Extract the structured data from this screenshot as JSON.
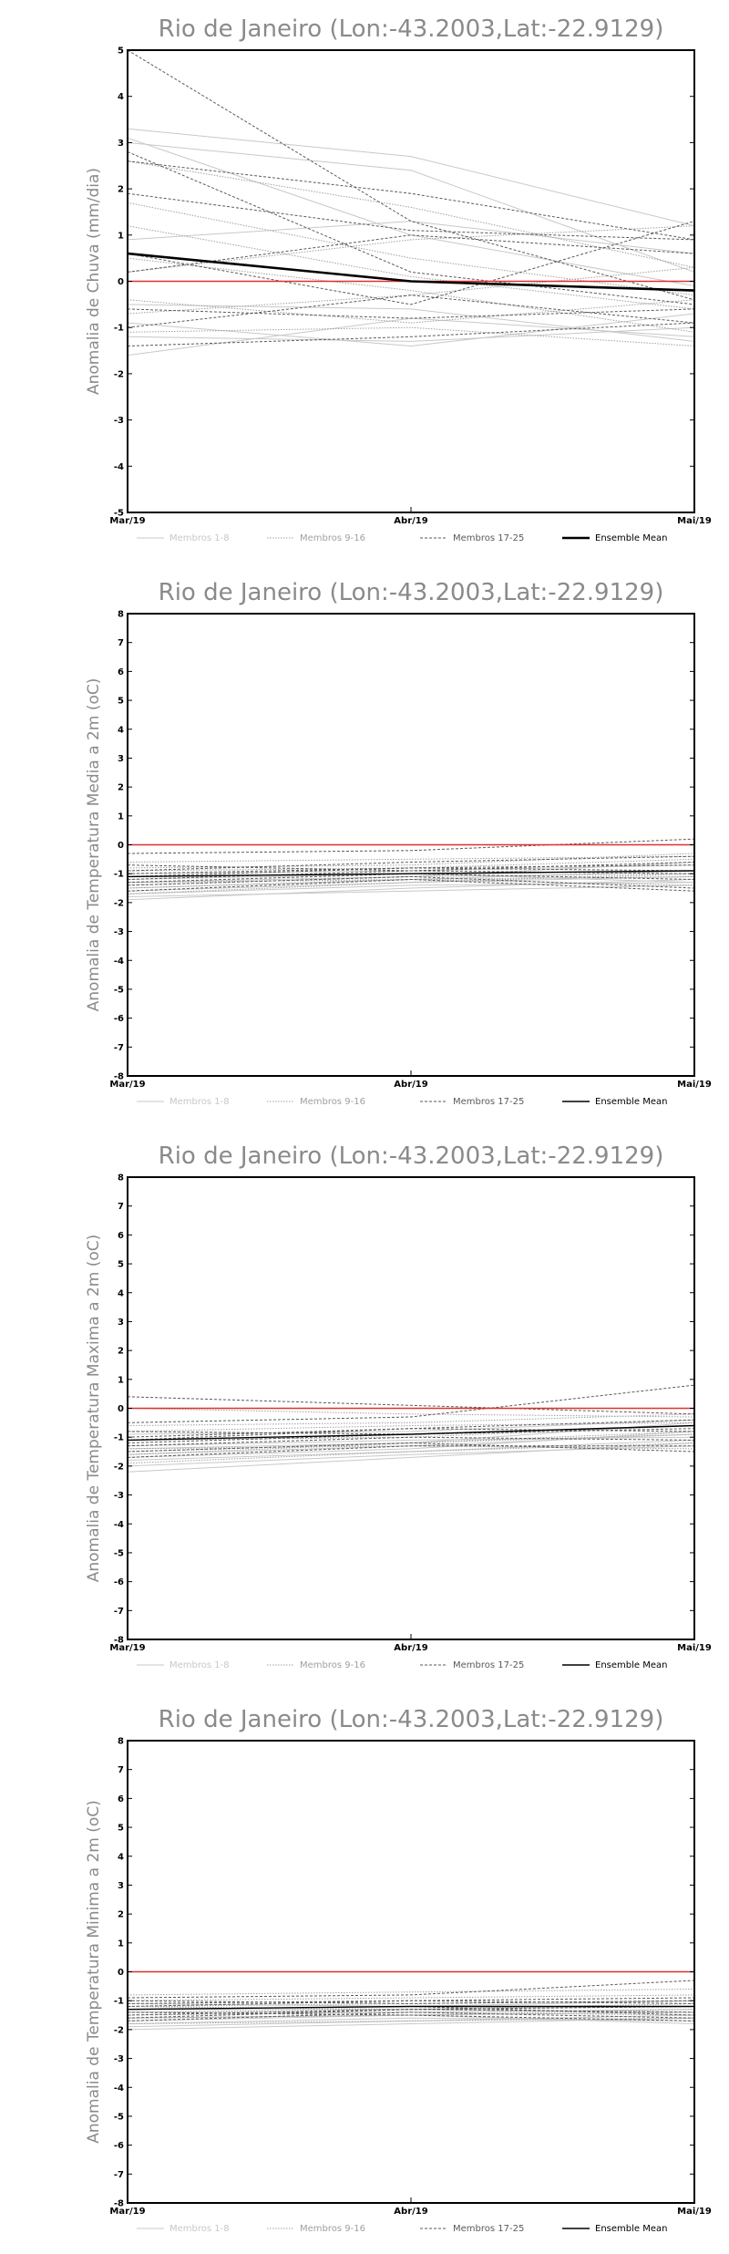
{
  "legend": {
    "m1": "Membros 1-8",
    "m2": "Membros 9-16",
    "m3": "Membros 17-25",
    "mean": "Ensemble Mean"
  },
  "colors": {
    "m1": "#c8c8c8",
    "m2": "#a0a0a0",
    "m3": "#5a5a5a",
    "mean": "#000000",
    "zero": "#e03030",
    "frame": "#000000"
  },
  "chart_data": [
    {
      "type": "line",
      "title": "Rio de Janeiro (Lon:-43.2003,Lat:-22.9129)",
      "ylabel": "Anomalia de Chuva (mm/dia)",
      "categories": [
        "Mar/19",
        "Abr/19",
        "Mai/19"
      ],
      "ylim": [
        -5,
        5
      ],
      "yticks": [
        -5,
        -4,
        -3,
        -2,
        -1,
        0,
        1,
        2,
        3,
        4,
        5
      ],
      "legend_placement": "bottom",
      "mean_bold": true,
      "members_1_8": [
        [
          3.3,
          2.7,
          1.2
        ],
        [
          3.1,
          1.0,
          -0.1
        ],
        [
          -1.2,
          -1.3,
          -1.0
        ],
        [
          -1.6,
          -0.8,
          -1.2
        ],
        [
          0.9,
          1.3,
          0.6
        ],
        [
          -0.5,
          -0.6,
          -1.3
        ],
        [
          -0.9,
          -1.4,
          -0.7
        ],
        [
          3.0,
          2.4,
          0.2
        ]
      ],
      "members_9_16": [
        [
          0.5,
          -0.2,
          -1.1
        ],
        [
          1.7,
          0.5,
          -0.3
        ],
        [
          -0.4,
          -0.9,
          -0.4
        ],
        [
          2.6,
          1.6,
          0.3
        ],
        [
          -1.1,
          -1.0,
          -1.4
        ],
        [
          0.2,
          0.9,
          1.2
        ],
        [
          -0.7,
          -0.3,
          0.3
        ],
        [
          1.2,
          0.1,
          -0.6
        ]
      ],
      "members_17_25": [
        [
          5.0,
          1.3,
          -0.4
        ],
        [
          2.6,
          1.9,
          0.9
        ],
        [
          -1.4,
          -1.2,
          -0.9
        ],
        [
          0.6,
          -0.5,
          1.3
        ],
        [
          1.9,
          1.1,
          0.9
        ],
        [
          2.8,
          0.2,
          -0.5
        ],
        [
          -0.6,
          -0.8,
          -0.6
        ],
        [
          0.2,
          1.0,
          0.6
        ],
        [
          -1.0,
          -0.3,
          -0.9
        ]
      ],
      "ensemble_mean": [
        0.6,
        0.0,
        -0.2
      ]
    },
    {
      "type": "line",
      "title": "Rio de Janeiro (Lon:-43.2003,Lat:-22.9129)",
      "ylabel": "Anomalia de Temperatura Media a 2m (oC)",
      "categories": [
        "Mar/19",
        "Abr/19",
        "Mai/19"
      ],
      "ylim": [
        -8,
        8
      ],
      "yticks": [
        -8,
        -7,
        -6,
        -5,
        -4,
        -3,
        -2,
        -1,
        0,
        1,
        2,
        3,
        4,
        5,
        6,
        7,
        8
      ],
      "legend_placement": "bottom",
      "mean_bold": false,
      "members_1_8": [
        [
          -1.9,
          -1.5,
          -1.2
        ],
        [
          -1.5,
          -1.2,
          -0.9
        ],
        [
          -1.7,
          -1.4,
          -1.3
        ],
        [
          -1.3,
          -1.1,
          -0.6
        ],
        [
          -1.8,
          -1.6,
          -1.4
        ],
        [
          -1.0,
          -0.9,
          -0.7
        ],
        [
          -1.6,
          -1.3,
          -1.1
        ],
        [
          -1.2,
          -1.0,
          -1.3
        ]
      ],
      "members_9_16": [
        [
          -0.6,
          -0.5,
          -0.4
        ],
        [
          -1.4,
          -1.1,
          -1.0
        ],
        [
          -0.9,
          -0.8,
          -0.5
        ],
        [
          -1.7,
          -1.3,
          -1.0
        ],
        [
          -1.1,
          -1.0,
          -0.9
        ],
        [
          -1.3,
          -1.2,
          -1.4
        ],
        [
          -0.8,
          -0.7,
          -0.3
        ],
        [
          -1.5,
          -1.2,
          -1.1
        ]
      ],
      "members_17_25": [
        [
          -0.3,
          -0.2,
          0.2
        ],
        [
          -1.2,
          -0.9,
          -1.0
        ],
        [
          -1.0,
          -0.8,
          -0.7
        ],
        [
          -1.4,
          -1.1,
          -1.5
        ],
        [
          -0.9,
          -0.6,
          -0.4
        ],
        [
          -1.6,
          -1.2,
          -1.6
        ],
        [
          -0.7,
          -0.9,
          -0.6
        ],
        [
          -1.1,
          -0.8,
          -0.9
        ],
        [
          -1.3,
          -1.0,
          -1.2
        ]
      ],
      "ensemble_mean": [
        -1.1,
        -1.0,
        -0.9
      ]
    },
    {
      "type": "line",
      "title": "Rio de Janeiro (Lon:-43.2003,Lat:-22.9129)",
      "ylabel": "Anomalia de Temperatura Maxima a 2m (oC)",
      "categories": [
        "Mar/19",
        "Abr/19",
        "Mai/19"
      ],
      "ylim": [
        -8,
        8
      ],
      "yticks": [
        -8,
        -7,
        -6,
        -5,
        -4,
        -3,
        -2,
        -1,
        0,
        1,
        2,
        3,
        4,
        5,
        6,
        7,
        8
      ],
      "legend_placement": "bottom",
      "mean_bold": false,
      "members_1_8": [
        [
          -2.2,
          -1.7,
          -1.2
        ],
        [
          -1.6,
          -1.3,
          -0.9
        ],
        [
          -1.8,
          -1.5,
          -1.1
        ],
        [
          -1.4,
          -1.2,
          -0.5
        ],
        [
          -2.0,
          -1.6,
          -1.3
        ],
        [
          -0.9,
          -0.8,
          -0.4
        ],
        [
          -1.7,
          -1.4,
          -0.8
        ],
        [
          -1.3,
          -1.1,
          -1.0
        ]
      ],
      "members_9_16": [
        [
          0.0,
          -0.2,
          -0.3
        ],
        [
          -1.5,
          -1.2,
          -0.8
        ],
        [
          -0.8,
          -0.6,
          -0.5
        ],
        [
          -1.9,
          -1.5,
          -1.2
        ],
        [
          -1.1,
          -1.0,
          -0.6
        ],
        [
          -1.4,
          -1.3,
          -1.4
        ],
        [
          -0.6,
          -0.5,
          -0.2
        ],
        [
          -1.6,
          -1.2,
          -0.9
        ]
      ],
      "members_17_25": [
        [
          0.4,
          0.1,
          -0.2
        ],
        [
          -1.2,
          -0.9,
          -0.7
        ],
        [
          -1.0,
          -0.7,
          -0.4
        ],
        [
          -1.5,
          -1.2,
          -1.5
        ],
        [
          -0.5,
          -0.3,
          0.8
        ],
        [
          -1.7,
          -1.3,
          -1.3
        ],
        [
          -0.8,
          -0.9,
          -0.6
        ],
        [
          -1.1,
          -0.7,
          -0.8
        ],
        [
          -1.3,
          -1.0,
          -1.1
        ]
      ],
      "ensemble_mean": [
        -1.1,
        -0.9,
        -0.6
      ]
    },
    {
      "type": "line",
      "title": "Rio de Janeiro (Lon:-43.2003,Lat:-22.9129)",
      "ylabel": "Anomalia de Temperatura Minima a 2m (oC)",
      "categories": [
        "Mar/19",
        "Abr/19",
        "Mai/19"
      ],
      "ylim": [
        -8,
        8
      ],
      "yticks": [
        -8,
        -7,
        -6,
        -5,
        -4,
        -3,
        -2,
        -1,
        0,
        1,
        2,
        3,
        4,
        5,
        6,
        7,
        8
      ],
      "legend_placement": "bottom",
      "mean_bold": false,
      "members_1_8": [
        [
          -2.0,
          -1.8,
          -1.6
        ],
        [
          -1.6,
          -1.5,
          -1.4
        ],
        [
          -1.8,
          -1.6,
          -1.7
        ],
        [
          -1.3,
          -1.3,
          -1.2
        ],
        [
          -1.9,
          -1.7,
          -1.5
        ],
        [
          -1.1,
          -1.2,
          -1.0
        ],
        [
          -1.7,
          -1.5,
          -1.8
        ],
        [
          -1.4,
          -1.4,
          -1.3
        ]
      ],
      "members_9_16": [
        [
          -1.0,
          -0.9,
          -0.8
        ],
        [
          -1.5,
          -1.4,
          -1.5
        ],
        [
          -1.2,
          -1.1,
          -1.0
        ],
        [
          -1.8,
          -1.7,
          -1.6
        ],
        [
          -0.8,
          -0.7,
          -0.6
        ],
        [
          -1.4,
          -1.3,
          -1.4
        ],
        [
          -1.6,
          -1.5,
          -1.3
        ],
        [
          -1.2,
          -1.3,
          -1.1
        ]
      ],
      "members_17_25": [
        [
          -0.9,
          -0.8,
          -0.3
        ],
        [
          -1.3,
          -1.2,
          -1.5
        ],
        [
          -1.5,
          -1.3,
          -1.2
        ],
        [
          -1.7,
          -1.4,
          -1.6
        ],
        [
          -1.1,
          -1.0,
          -0.9
        ],
        [
          -1.4,
          -1.5,
          -1.7
        ],
        [
          -1.0,
          -1.1,
          -1.0
        ],
        [
          -1.6,
          -1.3,
          -1.4
        ],
        [
          -1.2,
          -1.0,
          -1.1
        ]
      ],
      "ensemble_mean": [
        -1.3,
        -1.2,
        -1.2
      ]
    }
  ]
}
